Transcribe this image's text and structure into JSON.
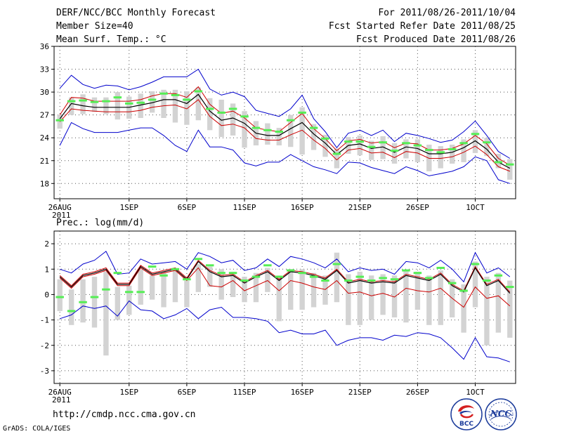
{
  "header": {
    "title": "DERF/NCC/BCC Monthly Forecast",
    "member_size": "Member Size=40",
    "variable": "Mean Surf. Temp.: °C",
    "period": "For 2011/08/26-2011/10/04",
    "refer_date": "Fcst Started Refer Date 2011/08/25",
    "produced_date": "Fcst Produced Date 2011/08/26"
  },
  "footer": {
    "url": "http://cmdp.ncc.cma.gov.cn",
    "credit": "GrADS: COLA/IGES"
  },
  "logos": {
    "bcc": "BCC",
    "ncc": "NCC"
  },
  "colors": {
    "median": "#000000",
    "inner_band": "#cc0000",
    "outer_band": "#0000cc",
    "mean_marker": "#55ee55",
    "box": "#d3d3d3",
    "grid": "#555555"
  },
  "chart_data": [
    {
      "type": "line",
      "title": "Mean Surf. Temp.: °C",
      "ylim": [
        16,
        36
      ],
      "yticks": [
        18,
        21,
        24,
        27,
        30,
        33,
        36
      ],
      "xlim": [
        -0.5,
        39.5
      ],
      "xticks": [
        {
          "i": 0,
          "label": "26AUG"
        },
        {
          "i": 6,
          "label": "1SEP"
        },
        {
          "i": 11,
          "label": "6SEP"
        },
        {
          "i": 16,
          "label": "11SEP"
        },
        {
          "i": 21,
          "label": "16SEP"
        },
        {
          "i": 26,
          "label": "21SEP"
        },
        {
          "i": 31,
          "label": "26SEP"
        },
        {
          "i": 36,
          "label": "1OCT"
        }
      ],
      "year_label": "2011",
      "grid": true,
      "mean": [
        26.3,
        28.8,
        28.9,
        28.7,
        28.8,
        29.3,
        28.5,
        28.6,
        29.0,
        29.8,
        29.6,
        29.0,
        30.1,
        27.8,
        27.3,
        27.8,
        26.8,
        25.3,
        25.0,
        24.8,
        26.3,
        27.3,
        25.3,
        23.9,
        21.9,
        23.5,
        23.5,
        22.8,
        23.4,
        22.3,
        23.3,
        23.0,
        22.4,
        22.1,
        22.5,
        23.3,
        24.5,
        23.4,
        20.8,
        20.5
      ],
      "median": [
        26.5,
        28.5,
        28.2,
        28.0,
        28.0,
        28.0,
        28.0,
        28.3,
        28.6,
        29.0,
        29.0,
        28.5,
        29.7,
        27.5,
        26.3,
        26.6,
        25.9,
        24.6,
        24.3,
        24.3,
        25.2,
        26.0,
        24.5,
        23.3,
        21.8,
        23.0,
        23.2,
        22.6,
        22.8,
        22.1,
        22.8,
        22.6,
        21.9,
        21.9,
        22.1,
        22.7,
        23.6,
        22.5,
        20.8,
        20.0
      ],
      "inner_upper": [
        27.0,
        29.3,
        29.2,
        28.8,
        28.8,
        28.8,
        28.8,
        29.0,
        29.5,
        29.8,
        29.8,
        29.3,
        30.7,
        28.4,
        27.2,
        27.5,
        26.6,
        25.3,
        25.0,
        24.8,
        26.0,
        27.2,
        25.2,
        23.9,
        22.3,
        23.6,
        23.8,
        23.3,
        23.5,
        22.7,
        23.3,
        23.2,
        22.4,
        22.4,
        22.6,
        23.2,
        24.3,
        23.2,
        21.3,
        20.4
      ],
      "inner_lower": [
        26.1,
        27.8,
        27.6,
        27.5,
        27.4,
        27.4,
        27.4,
        27.6,
        28.0,
        28.2,
        28.3,
        27.8,
        29.0,
        26.8,
        25.6,
        25.8,
        25.3,
        23.9,
        23.7,
        23.7,
        24.4,
        25.0,
        23.7,
        22.6,
        21.1,
        22.4,
        22.6,
        22.0,
        22.1,
        21.4,
        22.2,
        22.0,
        21.3,
        21.3,
        21.5,
        22.1,
        22.9,
        21.8,
        20.2,
        19.6
      ],
      "outer_upper": [
        30.5,
        32.2,
        31.0,
        30.5,
        30.9,
        30.8,
        30.3,
        30.7,
        31.3,
        32.0,
        32.0,
        32.0,
        33.0,
        30.4,
        29.6,
        30.0,
        29.4,
        27.6,
        27.2,
        26.8,
        27.8,
        29.6,
        26.5,
        24.8,
        22.7,
        24.6,
        25.0,
        24.3,
        25.0,
        23.5,
        24.6,
        24.3,
        23.9,
        23.4,
        23.7,
        24.8,
        26.2,
        24.3,
        22.2,
        21.3
      ],
      "outer_lower": [
        23.0,
        26.0,
        25.2,
        24.7,
        24.7,
        24.7,
        25.0,
        25.3,
        25.3,
        24.3,
        23.0,
        22.2,
        25.0,
        22.8,
        22.8,
        22.4,
        20.7,
        20.3,
        20.8,
        20.8,
        21.8,
        21.0,
        20.2,
        19.8,
        19.3,
        20.8,
        20.7,
        20.1,
        19.7,
        19.3,
        20.2,
        19.7,
        19.0,
        19.3,
        19.6,
        20.2,
        21.5,
        21.0,
        18.5,
        18.0
      ],
      "box_top": [
        27.0,
        29.3,
        29.7,
        29.3,
        29.3,
        30.0,
        29.4,
        29.8,
        30.1,
        30.3,
        30.3,
        30.1,
        30.6,
        29.2,
        29.0,
        28.5,
        27.5,
        26.2,
        25.9,
        25.3,
        27.0,
        28.0,
        25.8,
        24.4,
        22.6,
        24.1,
        24.3,
        23.6,
        24.2,
        23.3,
        23.8,
        23.8,
        23.1,
        22.9,
        23.1,
        23.8,
        25.0,
        24.0,
        21.9,
        21.2
      ],
      "box_bottom": [
        25.2,
        27.0,
        27.1,
        27.4,
        27.1,
        26.4,
        26.5,
        26.6,
        27.3,
        26.6,
        26.0,
        25.7,
        26.3,
        25.0,
        24.1,
        24.3,
        22.7,
        23.0,
        23.1,
        23.0,
        22.8,
        21.8,
        22.4,
        21.5,
        20.0,
        21.9,
        21.7,
        21.1,
        21.2,
        20.6,
        21.3,
        20.8,
        19.6,
        20.0,
        20.6,
        20.8,
        22.0,
        21.6,
        20.0,
        18.5
      ]
    },
    {
      "type": "line",
      "title": "Prec.: log(mm/d)",
      "ylim": [
        -3.5,
        2.5
      ],
      "yticks": [
        -3,
        -2,
        -1,
        0,
        1,
        2
      ],
      "xlim": [
        -0.5,
        39.5
      ],
      "xticks": [
        {
          "i": 0,
          "label": "26AUG"
        },
        {
          "i": 6,
          "label": "1SEP"
        },
        {
          "i": 11,
          "label": "6SEP"
        },
        {
          "i": 16,
          "label": "11SEP"
        },
        {
          "i": 21,
          "label": "16SEP"
        },
        {
          "i": 26,
          "label": "21SEP"
        },
        {
          "i": 31,
          "label": "26SEP"
        },
        {
          "i": 36,
          "label": "1OCT"
        }
      ],
      "year_label": "2011",
      "grid": true,
      "mean": [
        -0.1,
        -0.65,
        -0.3,
        -0.1,
        0.2,
        0.85,
        0.1,
        0.1,
        1.1,
        0.75,
        1.0,
        0.6,
        1.4,
        1.15,
        0.85,
        0.85,
        0.55,
        0.7,
        1.15,
        0.7,
        0.95,
        0.85,
        0.7,
        0.55,
        1.2,
        0.55,
        0.7,
        0.55,
        0.65,
        0.6,
        0.95,
        0.85,
        0.65,
        1.05,
        0.45,
        0.15,
        1.2,
        0.55,
        0.75,
        0.3
      ],
      "median": [
        0.7,
        0.3,
        0.75,
        0.85,
        1.0,
        0.4,
        0.4,
        1.1,
        0.8,
        0.9,
        1.0,
        0.6,
        1.3,
        0.9,
        0.7,
        0.75,
        0.45,
        0.7,
        0.9,
        0.55,
        0.9,
        0.85,
        0.75,
        0.6,
        0.95,
        0.45,
        0.55,
        0.45,
        0.5,
        0.45,
        0.75,
        0.65,
        0.55,
        0.8,
        0.35,
        0.1,
        1.05,
        0.35,
        0.55,
        0.05
      ],
      "inner_upper": [
        0.75,
        0.35,
        0.8,
        0.9,
        1.05,
        0.45,
        0.45,
        1.15,
        0.85,
        0.95,
        1.05,
        0.65,
        1.35,
        0.95,
        0.75,
        0.8,
        0.5,
        0.75,
        0.95,
        0.6,
        0.95,
        0.9,
        0.8,
        0.65,
        1.0,
        0.5,
        0.6,
        0.5,
        0.55,
        0.5,
        0.8,
        0.7,
        0.6,
        0.85,
        0.4,
        0.15,
        1.1,
        0.4,
        0.6,
        0.1
      ],
      "inner_lower": [
        0.65,
        0.25,
        0.7,
        0.8,
        0.95,
        0.35,
        0.35,
        1.05,
        0.75,
        0.85,
        0.95,
        0.55,
        1.05,
        0.35,
        0.3,
        0.55,
        0.15,
        0.35,
        0.55,
        0.15,
        0.55,
        0.45,
        0.3,
        0.2,
        0.55,
        0.05,
        0.1,
        -0.05,
        0.05,
        -0.1,
        0.25,
        0.15,
        0.1,
        0.25,
        -0.15,
        -0.5,
        0.3,
        -0.15,
        -0.05,
        -0.45
      ],
      "outer_upper": [
        1.0,
        0.85,
        1.2,
        1.35,
        1.7,
        0.8,
        0.85,
        1.4,
        1.2,
        1.25,
        1.3,
        1.0,
        1.65,
        1.5,
        1.25,
        1.35,
        0.95,
        1.05,
        1.4,
        1.1,
        1.5,
        1.4,
        1.25,
        1.05,
        1.4,
        0.9,
        1.05,
        0.95,
        1.0,
        0.8,
        1.3,
        1.25,
        1.05,
        1.35,
        1.0,
        0.5,
        1.65,
        0.85,
        1.05,
        0.7
      ],
      "outer_lower": [
        -0.95,
        -0.8,
        -0.45,
        -0.55,
        -0.45,
        -0.85,
        -0.25,
        -0.6,
        -0.65,
        -0.95,
        -0.8,
        -0.55,
        -0.95,
        -0.6,
        -0.5,
        -0.9,
        -0.9,
        -0.95,
        -1.05,
        -1.5,
        -1.4,
        -1.55,
        -1.55,
        -1.4,
        -2.0,
        -1.8,
        -1.7,
        -1.7,
        -1.8,
        -1.6,
        -1.65,
        -1.5,
        -1.55,
        -1.7,
        -2.1,
        -2.55,
        -1.7,
        -2.45,
        -2.5,
        -2.65
      ],
      "box_top": [
        0.6,
        0.2,
        0.6,
        0.7,
        0.9,
        0.3,
        0.35,
        1.0,
        0.75,
        0.9,
        1.0,
        0.55,
        1.2,
        1.1,
        1.0,
        0.9,
        0.7,
        0.85,
        1.05,
        0.75,
        1.0,
        1.0,
        0.85,
        0.75,
        1.65,
        0.8,
        0.9,
        0.75,
        0.8,
        0.75,
        0.95,
        0.9,
        0.75,
        0.95,
        0.6,
        0.4,
        1.3,
        0.7,
        0.85,
        0.55
      ],
      "box_bottom": [
        -0.65,
        -1.2,
        -1.1,
        -1.3,
        -2.4,
        -1.0,
        -0.8,
        -0.4,
        -0.2,
        -0.5,
        -0.3,
        -0.5,
        0.1,
        0.3,
        -0.2,
        -0.1,
        -0.3,
        -0.3,
        0.1,
        -1.05,
        -0.6,
        -0.6,
        -0.5,
        -0.4,
        -0.3,
        -1.2,
        -1.2,
        -1.0,
        -0.8,
        -0.9,
        -1.1,
        -0.6,
        -1.2,
        -1.2,
        -0.9,
        -1.5,
        -0.5,
        -2.0,
        -1.5,
        -1.7
      ]
    }
  ]
}
